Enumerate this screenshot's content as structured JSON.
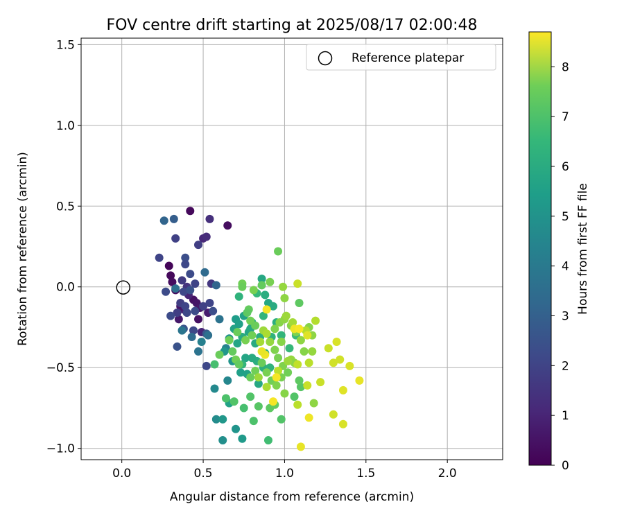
{
  "chart_data": {
    "type": "scatter",
    "title": "FOV centre drift starting at 2025/08/17 02:00:48",
    "xlabel": "Angular distance from reference (arcmin)",
    "ylabel": "Rotation from reference (arcmin)",
    "xlim": [
      -0.25,
      2.34
    ],
    "ylim": [
      -1.07,
      1.54
    ],
    "x_ticks": [
      0.0,
      0.5,
      1.0,
      1.5,
      2.0
    ],
    "x_tick_labels": [
      "0.0",
      "0.5",
      "1.0",
      "1.5",
      "2.0"
    ],
    "y_ticks": [
      -1.0,
      -0.5,
      0.0,
      0.5,
      1.0,
      1.5
    ],
    "y_tick_labels": [
      "−1.0",
      "−0.5",
      "0.0",
      "0.5",
      "1.0",
      "1.5"
    ],
    "grid": true,
    "legend": {
      "placement": "top-right",
      "entries": [
        "Reference platepar"
      ]
    },
    "reference_point": {
      "x": 0.0,
      "y": 0.0
    },
    "colorbar": {
      "label": "Hours from first FF file",
      "colormap": "viridis",
      "range": [
        0,
        8.7
      ],
      "ticks": [
        0,
        1,
        2,
        3,
        4,
        5,
        6,
        7,
        8
      ],
      "tick_labels": [
        "0",
        "1",
        "2",
        "3",
        "4",
        "5",
        "6",
        "7",
        "8"
      ]
    },
    "series": [
      {
        "points": [
          [
            0.42,
            0.47,
            0.2
          ],
          [
            0.65,
            0.38,
            0.3
          ],
          [
            0.29,
            0.13,
            0.1
          ],
          [
            0.3,
            0.07,
            0.2
          ],
          [
            0.31,
            0.03,
            0.3
          ],
          [
            0.33,
            -0.02,
            0.3
          ],
          [
            0.44,
            -0.08,
            0.4
          ],
          [
            0.46,
            -0.1,
            0.5
          ],
          [
            0.48,
            -0.13,
            0.6
          ],
          [
            0.38,
            -0.14,
            0.8
          ],
          [
            0.35,
            -0.2,
            0.6
          ],
          [
            0.47,
            -0.2,
            0.4
          ],
          [
            0.53,
            -0.16,
            0.7
          ],
          [
            0.49,
            -0.28,
            0.9
          ],
          [
            0.36,
            -0.12,
            0.5
          ],
          [
            0.41,
            -0.05,
            0.9
          ],
          [
            0.54,
            0.42,
            1.2
          ],
          [
            0.5,
            0.3,
            1.0
          ],
          [
            0.52,
            0.31,
            1.1
          ],
          [
            0.47,
            0.26,
            1.6
          ],
          [
            0.55,
            0.02,
            1.4
          ],
          [
            0.23,
            0.18,
            1.8
          ],
          [
            0.33,
            0.3,
            1.7
          ],
          [
            0.39,
            0.18,
            2.1
          ],
          [
            0.39,
            0.14,
            1.9
          ],
          [
            0.37,
            0.04,
            1.5
          ],
          [
            0.42,
            0.08,
            2.0
          ],
          [
            0.45,
            0.02,
            1.8
          ],
          [
            0.4,
            0.0,
            1.3
          ],
          [
            0.38,
            -0.03,
            1.9
          ],
          [
            0.42,
            -0.02,
            2.2
          ],
          [
            0.27,
            -0.03,
            2.0
          ],
          [
            0.36,
            -0.1,
            1.6
          ],
          [
            0.39,
            -0.12,
            1.8
          ],
          [
            0.4,
            -0.16,
            1.9
          ],
          [
            0.45,
            -0.15,
            2.0
          ],
          [
            0.5,
            -0.12,
            1.7
          ],
          [
            0.54,
            -0.1,
            1.8
          ],
          [
            0.56,
            -0.15,
            2.1
          ],
          [
            0.34,
            -0.16,
            1.6
          ],
          [
            0.3,
            -0.18,
            2.0
          ],
          [
            0.38,
            -0.26,
            2.3
          ],
          [
            0.44,
            -0.27,
            1.9
          ],
          [
            0.52,
            -0.29,
            2.4
          ],
          [
            0.34,
            -0.37,
            2.2
          ],
          [
            0.52,
            -0.49,
            1.9
          ],
          [
            0.26,
            0.41,
            2.8
          ],
          [
            0.32,
            0.42,
            2.6
          ],
          [
            0.51,
            0.09,
            3.0
          ],
          [
            0.58,
            0.01,
            2.8
          ],
          [
            0.33,
            -0.01,
            3.2
          ],
          [
            0.37,
            -0.27,
            3.4
          ],
          [
            0.43,
            -0.31,
            3.0
          ],
          [
            0.47,
            -0.4,
            3.3
          ],
          [
            0.53,
            -0.3,
            3.2
          ],
          [
            0.6,
            -0.2,
            3.3
          ],
          [
            0.49,
            -0.34,
            3.8
          ],
          [
            0.57,
            -0.63,
            4.1
          ],
          [
            0.58,
            -0.82,
            4.2
          ],
          [
            0.62,
            -0.95,
            4.3
          ],
          [
            0.65,
            -0.58,
            4.0
          ],
          [
            0.64,
            -0.38,
            3.9
          ],
          [
            0.63,
            -0.4,
            4.6
          ],
          [
            0.7,
            -0.88,
            4.5
          ],
          [
            0.74,
            -0.94,
            4.7
          ],
          [
            0.62,
            -0.82,
            4.6
          ],
          [
            0.66,
            -0.32,
            4.4
          ],
          [
            0.68,
            -0.46,
            4.5
          ],
          [
            0.7,
            -0.2,
            4.8
          ],
          [
            0.69,
            -0.26,
            5.0
          ],
          [
            0.72,
            -0.23,
            4.9
          ],
          [
            0.75,
            -0.18,
            5.0
          ],
          [
            0.78,
            -0.28,
            5.1
          ],
          [
            0.8,
            -0.22,
            5.2
          ],
          [
            0.66,
            -0.72,
            5.0
          ],
          [
            0.73,
            -0.53,
            4.9
          ],
          [
            0.77,
            -0.54,
            5.0
          ],
          [
            0.71,
            -0.35,
            5.1
          ],
          [
            0.74,
            -0.31,
            5.3
          ],
          [
            0.79,
            -0.26,
            5.2
          ],
          [
            0.82,
            -0.35,
            5.3
          ],
          [
            0.85,
            -0.31,
            5.4
          ],
          [
            0.88,
            -0.41,
            5.5
          ],
          [
            0.86,
            0.05,
            5.2
          ],
          [
            0.88,
            -0.05,
            5.4
          ],
          [
            0.9,
            -0.1,
            5.2
          ],
          [
            0.93,
            -0.12,
            5.3
          ],
          [
            0.84,
            -0.6,
            5.2
          ],
          [
            0.83,
            -0.46,
            5.4
          ],
          [
            0.8,
            -0.44,
            5.3
          ],
          [
            0.76,
            -0.44,
            5.1
          ],
          [
            0.87,
            -0.5,
            5.5
          ],
          [
            0.91,
            -0.5,
            5.6
          ],
          [
            0.72,
            -0.06,
            5.6
          ],
          [
            0.83,
            -0.04,
            5.8
          ],
          [
            0.92,
            -0.31,
            5.6
          ],
          [
            0.95,
            -0.22,
            5.4
          ],
          [
            0.98,
            -0.3,
            5.7
          ],
          [
            1.03,
            -0.38,
            5.8
          ],
          [
            1.07,
            -0.3,
            5.9
          ],
          [
            0.87,
            -0.18,
            5.7
          ],
          [
            0.74,
            -0.48,
            5.7
          ],
          [
            0.57,
            -0.48,
            6.1
          ],
          [
            0.64,
            -0.69,
            6.2
          ],
          [
            0.69,
            -0.71,
            6.3
          ],
          [
            0.75,
            -0.75,
            6.1
          ],
          [
            0.79,
            -0.68,
            6.3
          ],
          [
            0.84,
            -0.74,
            6.4
          ],
          [
            0.81,
            -0.83,
            6.2
          ],
          [
            0.91,
            -0.75,
            6.5
          ],
          [
            0.94,
            -0.73,
            6.6
          ],
          [
            0.98,
            -0.82,
            6.3
          ],
          [
            0.9,
            -0.95,
            6.0
          ],
          [
            1.06,
            -0.68,
            6.3
          ],
          [
            1.1,
            -0.62,
            6.4
          ],
          [
            1.09,
            -0.58,
            6.5
          ],
          [
            1.09,
            -0.1,
            6.5
          ],
          [
            0.96,
            0.22,
            6.7
          ],
          [
            0.86,
            0.01,
            6.6
          ],
          [
            0.91,
            0.03,
            6.9
          ],
          [
            0.74,
            0.02,
            6.8
          ],
          [
            0.74,
            0.0,
            6.7
          ],
          [
            0.81,
            -0.02,
            6.9
          ],
          [
            0.78,
            -0.14,
            6.6
          ],
          [
            0.77,
            -0.16,
            6.5
          ],
          [
            0.79,
            -0.21,
            6.8
          ],
          [
            0.82,
            -0.24,
            6.7
          ],
          [
            0.8,
            -0.3,
            6.8
          ],
          [
            0.76,
            -0.33,
            6.9
          ],
          [
            0.71,
            -0.28,
            6.7
          ],
          [
            0.66,
            -0.33,
            6.8
          ],
          [
            0.68,
            -0.4,
            6.6
          ],
          [
            0.6,
            -0.42,
            6.7
          ],
          [
            0.7,
            -0.45,
            6.8
          ],
          [
            0.72,
            -0.48,
            6.6
          ],
          [
            0.79,
            -0.56,
            6.7
          ],
          [
            0.82,
            -0.52,
            6.8
          ],
          [
            0.86,
            -0.47,
            6.7
          ],
          [
            0.89,
            -0.53,
            6.9
          ],
          [
            0.92,
            -0.58,
            6.8
          ],
          [
            0.95,
            -0.61,
            7.0
          ],
          [
            0.98,
            -0.56,
            6.9
          ],
          [
            1.02,
            -0.53,
            6.8
          ],
          [
            0.99,
            -0.49,
            7.0
          ],
          [
            0.96,
            -0.44,
            6.9
          ],
          [
            0.94,
            -0.39,
            7.0
          ],
          [
            0.98,
            -0.34,
            7.1
          ],
          [
            0.94,
            -0.26,
            7.0
          ],
          [
            0.97,
            -0.22,
            7.1
          ],
          [
            1.0,
            -0.2,
            7.2
          ],
          [
            1.04,
            -0.24,
            7.1
          ],
          [
            1.07,
            -0.28,
            7.0
          ],
          [
            1.1,
            -0.33,
            7.2
          ],
          [
            1.15,
            -0.25,
            7.1
          ],
          [
            1.17,
            -0.3,
            7.2
          ],
          [
            1.12,
            -0.4,
            7.1
          ],
          [
            1.17,
            -0.4,
            7.3
          ],
          [
            1.18,
            -0.72,
            7.2
          ],
          [
            1.0,
            -0.66,
            7.1
          ],
          [
            1.04,
            -0.45,
            7.3
          ],
          [
            1.06,
            -0.47,
            7.2
          ],
          [
            1.02,
            -0.46,
            7.4
          ],
          [
            0.99,
            0.0,
            7.3
          ],
          [
            1.0,
            -0.07,
            7.2
          ],
          [
            1.01,
            -0.18,
            7.4
          ],
          [
            1.05,
            -0.22,
            7.5
          ],
          [
            0.91,
            -0.34,
            7.3
          ],
          [
            0.87,
            -0.27,
            7.4
          ],
          [
            0.85,
            -0.34,
            7.5
          ],
          [
            0.89,
            -0.29,
            7.6
          ],
          [
            0.84,
            -0.56,
            7.4
          ],
          [
            0.89,
            -0.62,
            7.6
          ],
          [
            1.13,
            -0.27,
            7.7
          ],
          [
            1.15,
            -0.47,
            7.8
          ],
          [
            1.19,
            -0.21,
            7.7
          ],
          [
            1.08,
            -0.48,
            7.9
          ],
          [
            0.96,
            -0.52,
            7.8
          ],
          [
            1.14,
            -0.61,
            8.0
          ],
          [
            1.08,
            -0.73,
            7.8
          ],
          [
            1.22,
            -0.59,
            8.0
          ],
          [
            1.3,
            -0.47,
            8.1
          ],
          [
            1.32,
            -0.34,
            8.2
          ],
          [
            1.27,
            -0.38,
            8.0
          ],
          [
            1.34,
            -0.45,
            8.1
          ],
          [
            1.4,
            -0.49,
            8.2
          ],
          [
            1.46,
            -0.58,
            8.4
          ],
          [
            1.36,
            -0.64,
            8.3
          ],
          [
            1.3,
            -0.79,
            8.1
          ],
          [
            1.36,
            -0.85,
            8.2
          ],
          [
            1.15,
            -0.81,
            8.5
          ],
          [
            1.1,
            -0.99,
            8.4
          ],
          [
            0.93,
            -0.71,
            8.6
          ],
          [
            0.89,
            -0.14,
            8.6
          ],
          [
            0.88,
            -0.42,
            8.5
          ],
          [
            0.86,
            -0.4,
            8.4
          ],
          [
            0.95,
            -0.56,
            8.6
          ],
          [
            1.06,
            -0.26,
            8.5
          ],
          [
            1.09,
            -0.26,
            8.6
          ],
          [
            1.14,
            -0.3,
            8.3
          ],
          [
            1.08,
            0.02,
            8.0
          ]
        ]
      }
    ]
  }
}
